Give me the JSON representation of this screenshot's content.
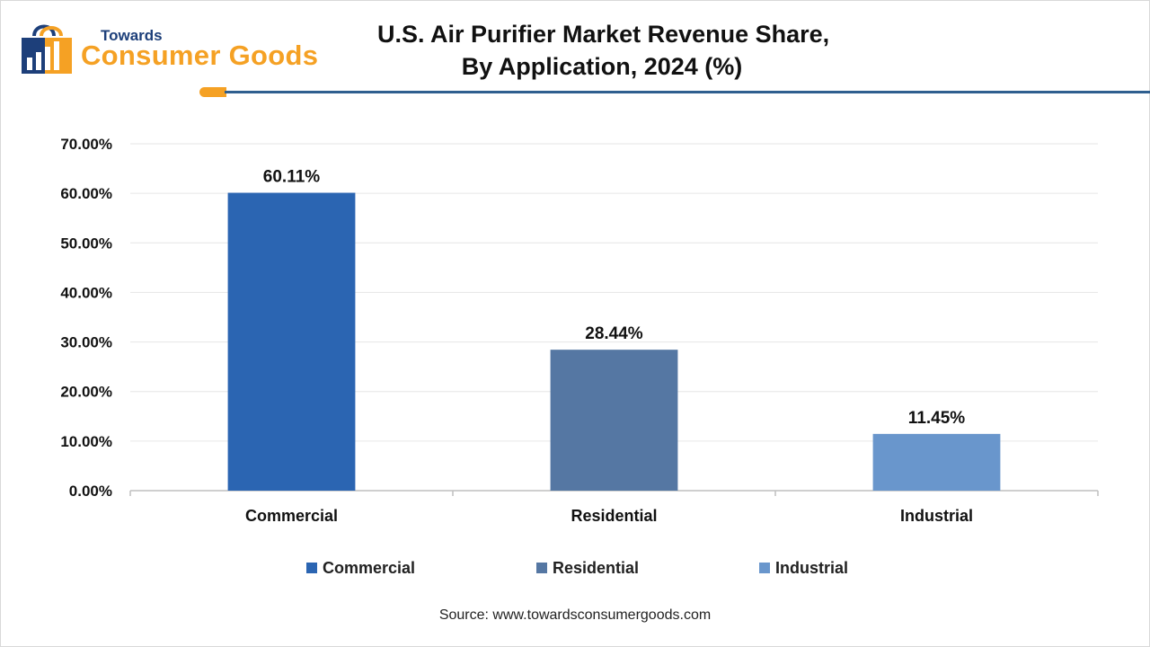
{
  "brand": {
    "small_text": "Towards",
    "big_text": "Consumer Goods",
    "colors": {
      "navy": "#1d3f7a",
      "orange": "#f5a124",
      "rule": "#2f5f8f"
    }
  },
  "title_lines": [
    "U.S. Air Purifier Market  Revenue Share,",
    "By Application, 2024 (%)"
  ],
  "chart_data": {
    "type": "bar",
    "categories": [
      "Commercial",
      "Residential",
      "Industrial"
    ],
    "values": [
      60.11,
      28.44,
      11.45
    ],
    "value_labels": [
      "60.11%",
      "28.44%",
      "11.45%"
    ],
    "colors": [
      "#2b65b2",
      "#5577a3",
      "#6996cc"
    ],
    "ylim": [
      0,
      70
    ],
    "yticks": [
      0,
      10,
      20,
      30,
      40,
      50,
      60,
      70
    ],
    "ytick_labels": [
      "0.00%",
      "10.00%",
      "20.00%",
      "30.00%",
      "40.00%",
      "50.00%",
      "60.00%",
      "70.00%"
    ],
    "grid": true,
    "legend": "bottom"
  },
  "legend_items": [
    {
      "label": "Commercial",
      "color": "#2b65b2"
    },
    {
      "label": "Residential",
      "color": "#5577a3"
    },
    {
      "label": "Industrial",
      "color": "#6996cc"
    }
  ],
  "source": "Source: www.towardsconsumergoods.com"
}
